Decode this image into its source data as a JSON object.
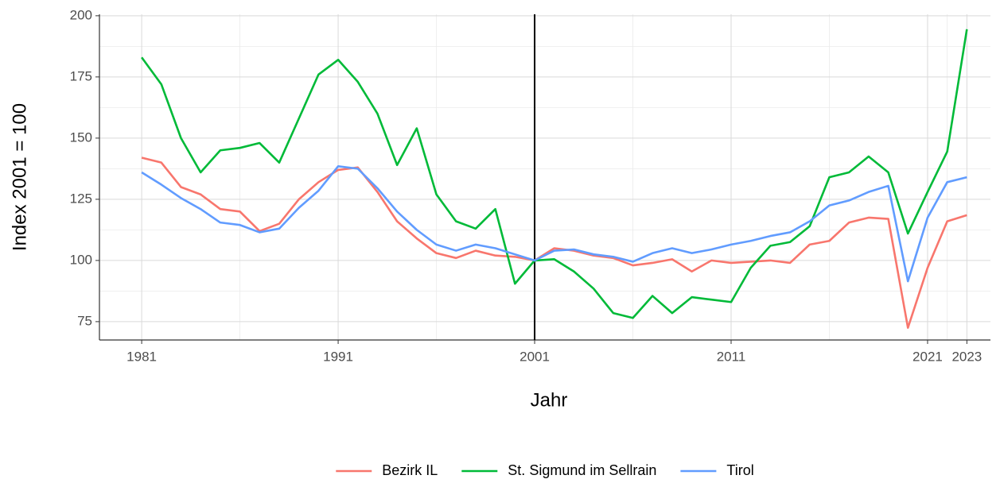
{
  "chart_data": {
    "type": "line",
    "x_label": "Jahr",
    "y_label": "Index 2001 = 100",
    "x": [
      1981,
      1982,
      1983,
      1984,
      1985,
      1986,
      1987,
      1988,
      1989,
      1990,
      1991,
      1992,
      1993,
      1994,
      1995,
      1996,
      1997,
      1998,
      1999,
      2000,
      2001,
      2002,
      2003,
      2004,
      2005,
      2006,
      2007,
      2008,
      2009,
      2010,
      2011,
      2012,
      2013,
      2014,
      2015,
      2016,
      2017,
      2018,
      2019,
      2020,
      2021,
      2022,
      2023
    ],
    "series": [
      {
        "name": "Bezirk IL",
        "color": "#F8766D",
        "values": [
          142,
          140,
          130,
          127,
          121,
          120,
          112,
          115,
          125,
          132,
          137,
          138,
          128,
          116,
          109,
          103,
          101,
          104,
          102,
          101.5,
          100,
          105,
          104,
          102,
          101,
          98,
          99,
          100.5,
          95.5,
          100,
          99,
          99.5,
          100,
          99,
          106.5,
          108,
          115.5,
          117.5,
          117,
          72.5,
          97,
          116,
          118.5
        ]
      },
      {
        "name": "St. Sigmund im Sellrain",
        "color": "#00BA38",
        "values": [
          183,
          172,
          150,
          136,
          145,
          146,
          148,
          140,
          158,
          176,
          182,
          173,
          160,
          139,
          154,
          127,
          116,
          113,
          121,
          90.5,
          100,
          100.5,
          95.5,
          88.5,
          78.5,
          76.5,
          85.5,
          78.5,
          85,
          84,
          83,
          97,
          106,
          107.5,
          114,
          134,
          136,
          142.5,
          136,
          111,
          128,
          144.5,
          194.5
        ]
      },
      {
        "name": "Tirol",
        "color": "#619CFF",
        "values": [
          136,
          131,
          125.5,
          121,
          115.5,
          114.5,
          111.5,
          113,
          121.5,
          128.5,
          138.5,
          137.5,
          129.5,
          120,
          112.5,
          106.5,
          104,
          106.5,
          105,
          102.5,
          100,
          104,
          104.5,
          102.5,
          101.5,
          99.5,
          103,
          105,
          103,
          104.5,
          106.5,
          108,
          110,
          111.5,
          116,
          122.5,
          124.5,
          128,
          130.5,
          91.5,
          117.5,
          132,
          134
        ]
      }
    ],
    "xlim": [
      1978.85,
      2024.2
    ],
    "ylim": [
      67.5,
      200.6
    ],
    "xticks": [
      1981,
      1991,
      2001,
      2011,
      2021,
      2023
    ],
    "yticks": [
      75,
      100,
      125,
      150,
      175,
      200
    ],
    "vline": 2001,
    "grid": true,
    "legend": "bottom"
  }
}
